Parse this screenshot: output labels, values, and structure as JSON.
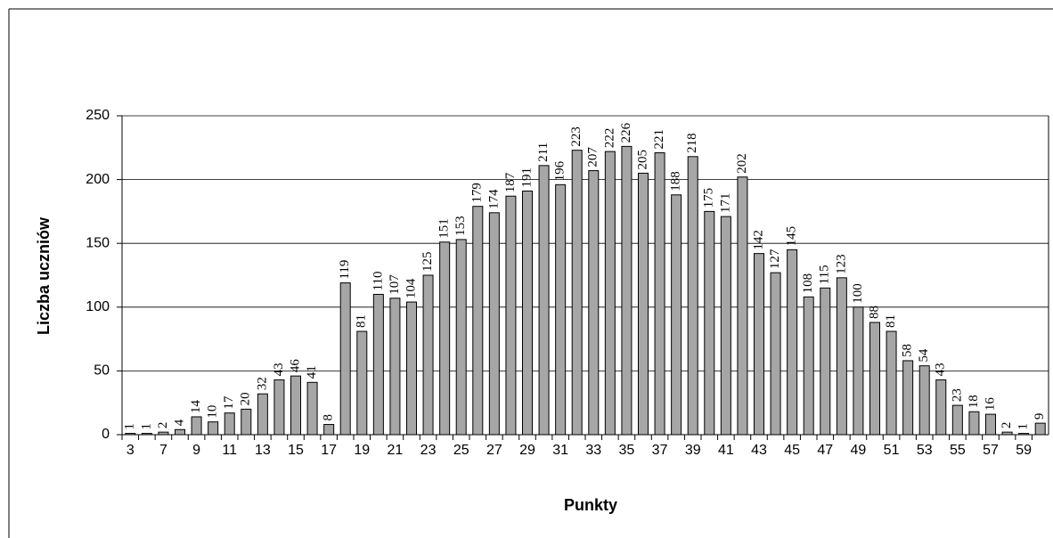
{
  "chart_data": {
    "type": "bar",
    "y_label": "Liczba uczniów",
    "x_label": "Punkty",
    "categories": [
      "3",
      null,
      "7",
      null,
      "9",
      null,
      "11",
      null,
      "13",
      null,
      "15",
      null,
      "17",
      null,
      "19",
      null,
      "21",
      null,
      "23",
      null,
      "25",
      null,
      "27",
      null,
      "29",
      null,
      "31",
      null,
      "33",
      null,
      "35",
      null,
      "37",
      null,
      "39",
      null,
      "41",
      null,
      "43",
      null,
      "45",
      null,
      "47",
      null,
      "49",
      null,
      "51",
      null,
      "53",
      null,
      "55",
      null,
      "57",
      null,
      "59",
      null
    ],
    "values": [
      1,
      1,
      2,
      4,
      14,
      10,
      17,
      20,
      32,
      43,
      46,
      41,
      8,
      119,
      81,
      110,
      107,
      104,
      125,
      151,
      153,
      179,
      174,
      187,
      191,
      211,
      196,
      223,
      207,
      222,
      226,
      205,
      221,
      188,
      218,
      175,
      171,
      202,
      142,
      127,
      145,
      108,
      115,
      123,
      100,
      88,
      81,
      58,
      54,
      43,
      23,
      18,
      16,
      2,
      1,
      9
    ],
    "color": "#a6a6a6",
    "ylim": [
      0,
      250
    ],
    "yticks": [
      0,
      50,
      100,
      150,
      200,
      250
    ],
    "grid": true
  }
}
